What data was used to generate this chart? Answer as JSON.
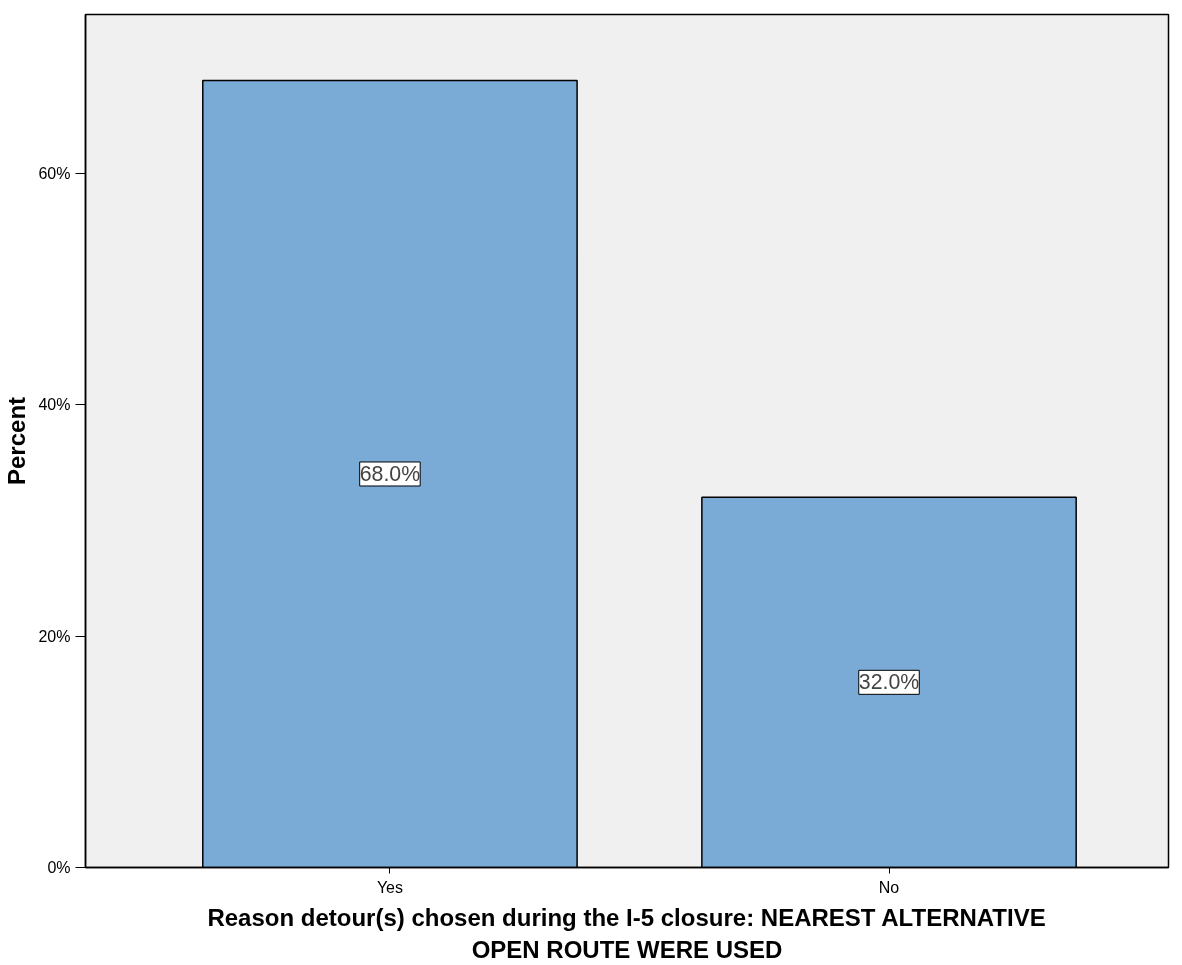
{
  "chart_data": {
    "type": "bar",
    "xlabel": "Reason detour(s) chosen during the I-5 closure: NEAREST ALTERNATIVE OPEN ROUTE WERE USED",
    "ylabel": "Percent",
    "categories": [
      "Yes",
      "No"
    ],
    "values": [
      68.0,
      32.0
    ],
    "value_labels": [
      "68.0%",
      "32.0%"
    ],
    "color": "#7aaad6",
    "ylim": [
      0,
      73.7
    ],
    "yticks": [
      {
        "value": 0,
        "label": "0%"
      },
      {
        "value": 20,
        "label": "20%"
      },
      {
        "value": 40,
        "label": "40%"
      },
      {
        "value": 60,
        "label": "60%"
      }
    ],
    "grid": false
  }
}
